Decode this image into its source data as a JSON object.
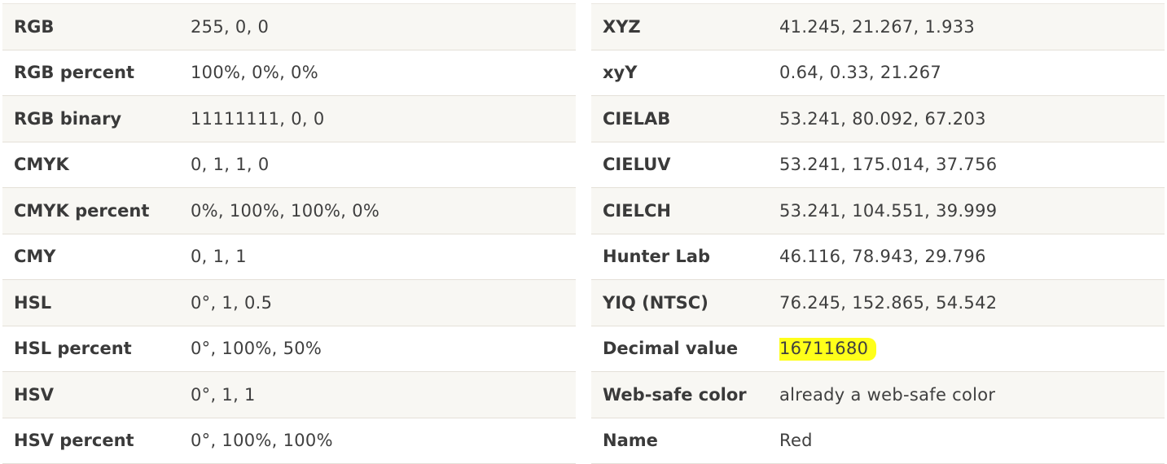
{
  "left_table": {
    "rows": [
      {
        "label": "RGB",
        "value": "255, 0, 0"
      },
      {
        "label": "RGB percent",
        "value": "100%, 0%, 0%"
      },
      {
        "label": "RGB binary",
        "value": "11111111, 0, 0"
      },
      {
        "label": "CMYK",
        "value": "0, 1, 1, 0"
      },
      {
        "label": "CMYK percent",
        "value": "0%, 100%, 100%, 0%"
      },
      {
        "label": "CMY",
        "value": "0, 1, 1"
      },
      {
        "label": "HSL",
        "value": "0°, 1, 0.5"
      },
      {
        "label": "HSL percent",
        "value": "0°, 100%, 50%"
      },
      {
        "label": "HSV",
        "value": "0°, 1, 1"
      },
      {
        "label": "HSV percent",
        "value": "0°, 100%, 100%"
      }
    ]
  },
  "right_table": {
    "rows": [
      {
        "label": "XYZ",
        "value": "41.245, 21.267, 1.933"
      },
      {
        "label": "xyY",
        "value": "0.64, 0.33, 21.267"
      },
      {
        "label": "CIELAB",
        "value": "53.241, 80.092, 67.203"
      },
      {
        "label": "CIELUV",
        "value": "53.241, 175.014, 37.756"
      },
      {
        "label": "CIELCH",
        "value": "53.241, 104.551, 39.999"
      },
      {
        "label": "Hunter Lab",
        "value": "46.116, 78.943, 29.796"
      },
      {
        "label": "YIQ (NTSC)",
        "value": "76.245, 152.865, 54.542"
      },
      {
        "label": "Decimal value",
        "value": "16711680"
      },
      {
        "label": "Web-safe color",
        "value": "already a web-safe color"
      },
      {
        "label": "Name",
        "value": "Red"
      }
    ]
  },
  "colors": {
    "row_alt_background": "#f8f7f3",
    "row_background": "#ffffff",
    "row_border": "#e4e0d8",
    "highlight": "#ffff1a",
    "text": "#333333"
  }
}
